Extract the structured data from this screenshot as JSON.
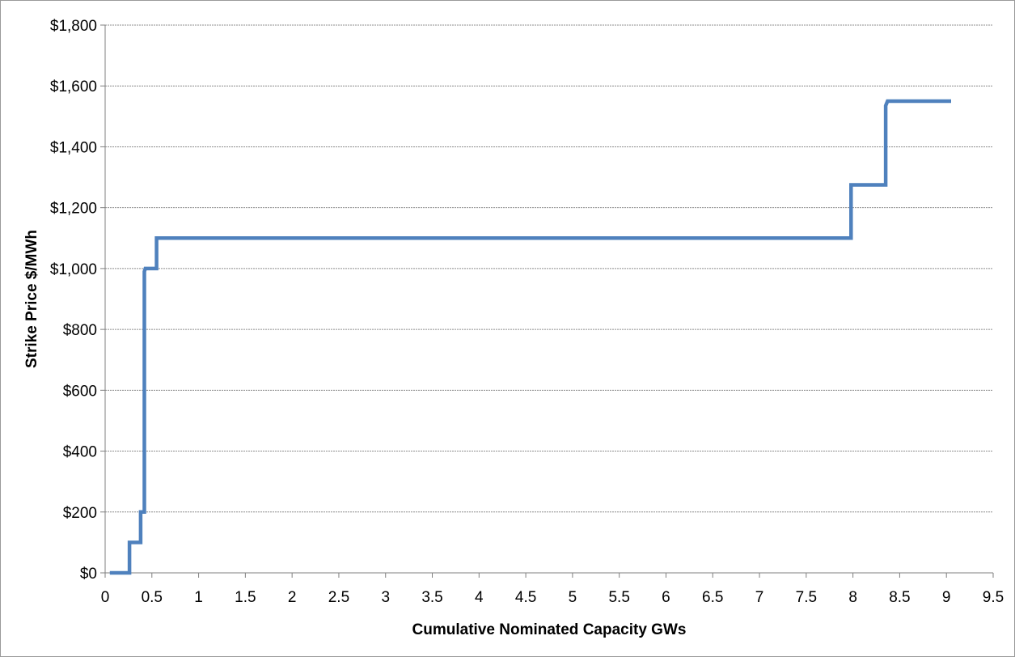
{
  "chart_data": {
    "type": "line",
    "step": true,
    "title": "",
    "xlabel": "Cumulative Nominated Capacity GWs",
    "ylabel": "Strike Price $/MWh",
    "xlim": [
      0,
      9.5
    ],
    "ylim": [
      0,
      1800
    ],
    "x_ticks": [
      0,
      0.5,
      1,
      1.5,
      2,
      2.5,
      3,
      3.5,
      4,
      4.5,
      5,
      5.5,
      6,
      6.5,
      7,
      7.5,
      8,
      8.5,
      9,
      9.5
    ],
    "x_tick_labels": [
      "0",
      "0.5",
      "1",
      "1.5",
      "2",
      "2.5",
      "3",
      "3.5",
      "4",
      "4.5",
      "5",
      "5.5",
      "6",
      "6.5",
      "7",
      "7.5",
      "8",
      "8.5",
      "9",
      "9.5"
    ],
    "y_ticks": [
      0,
      200,
      400,
      600,
      800,
      1000,
      1200,
      1400,
      1600,
      1800
    ],
    "y_tick_labels": [
      "$0",
      "$200",
      "$400",
      "$600",
      "$800",
      "$1,000",
      "$1,200",
      "$1,400",
      "$1,600",
      "$1,800"
    ],
    "grid": "horizontal",
    "legend": "none",
    "series": [
      {
        "color": "#4f81bd",
        "points": [
          {
            "x": 0.05,
            "y": 0
          },
          {
            "x": 0.26,
            "y": 0
          },
          {
            "x": 0.26,
            "y": 100
          },
          {
            "x": 0.38,
            "y": 100
          },
          {
            "x": 0.38,
            "y": 200
          },
          {
            "x": 0.42,
            "y": 200
          },
          {
            "x": 0.42,
            "y": 990
          },
          {
            "x": 0.43,
            "y": 1000
          },
          {
            "x": 0.55,
            "y": 1000
          },
          {
            "x": 0.55,
            "y": 1100
          },
          {
            "x": 7.98,
            "y": 1100
          },
          {
            "x": 7.98,
            "y": 1275
          },
          {
            "x": 8.35,
            "y": 1275
          },
          {
            "x": 8.35,
            "y": 1535
          },
          {
            "x": 8.37,
            "y": 1550
          },
          {
            "x": 9.05,
            "y": 1550
          }
        ]
      }
    ]
  }
}
